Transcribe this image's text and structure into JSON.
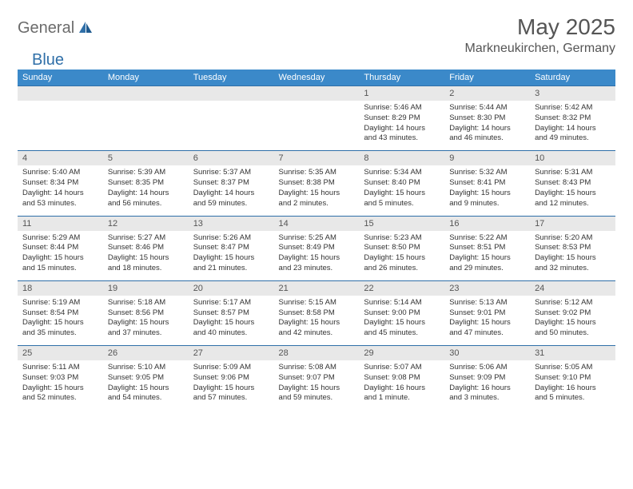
{
  "logo": {
    "part1": "General",
    "part2": "Blue"
  },
  "title": "May 2025",
  "location": "Markneukirchen, Germany",
  "colors": {
    "header_bg": "#3b89c9",
    "border": "#2f6fa8",
    "daynum_bg": "#e8e8e8",
    "text": "#333333",
    "logo_gray": "#6b6b6b",
    "logo_blue": "#2f6fa8"
  },
  "dow": [
    "Sunday",
    "Monday",
    "Tuesday",
    "Wednesday",
    "Thursday",
    "Friday",
    "Saturday"
  ],
  "weeks": [
    [
      null,
      null,
      null,
      null,
      {
        "n": "1",
        "sr": "5:46 AM",
        "ss": "8:29 PM",
        "dl": "14 hours and 43 minutes."
      },
      {
        "n": "2",
        "sr": "5:44 AM",
        "ss": "8:30 PM",
        "dl": "14 hours and 46 minutes."
      },
      {
        "n": "3",
        "sr": "5:42 AM",
        "ss": "8:32 PM",
        "dl": "14 hours and 49 minutes."
      }
    ],
    [
      {
        "n": "4",
        "sr": "5:40 AM",
        "ss": "8:34 PM",
        "dl": "14 hours and 53 minutes."
      },
      {
        "n": "5",
        "sr": "5:39 AM",
        "ss": "8:35 PM",
        "dl": "14 hours and 56 minutes."
      },
      {
        "n": "6",
        "sr": "5:37 AM",
        "ss": "8:37 PM",
        "dl": "14 hours and 59 minutes."
      },
      {
        "n": "7",
        "sr": "5:35 AM",
        "ss": "8:38 PM",
        "dl": "15 hours and 2 minutes."
      },
      {
        "n": "8",
        "sr": "5:34 AM",
        "ss": "8:40 PM",
        "dl": "15 hours and 5 minutes."
      },
      {
        "n": "9",
        "sr": "5:32 AM",
        "ss": "8:41 PM",
        "dl": "15 hours and 9 minutes."
      },
      {
        "n": "10",
        "sr": "5:31 AM",
        "ss": "8:43 PM",
        "dl": "15 hours and 12 minutes."
      }
    ],
    [
      {
        "n": "11",
        "sr": "5:29 AM",
        "ss": "8:44 PM",
        "dl": "15 hours and 15 minutes."
      },
      {
        "n": "12",
        "sr": "5:27 AM",
        "ss": "8:46 PM",
        "dl": "15 hours and 18 minutes."
      },
      {
        "n": "13",
        "sr": "5:26 AM",
        "ss": "8:47 PM",
        "dl": "15 hours and 21 minutes."
      },
      {
        "n": "14",
        "sr": "5:25 AM",
        "ss": "8:49 PM",
        "dl": "15 hours and 23 minutes."
      },
      {
        "n": "15",
        "sr": "5:23 AM",
        "ss": "8:50 PM",
        "dl": "15 hours and 26 minutes."
      },
      {
        "n": "16",
        "sr": "5:22 AM",
        "ss": "8:51 PM",
        "dl": "15 hours and 29 minutes."
      },
      {
        "n": "17",
        "sr": "5:20 AM",
        "ss": "8:53 PM",
        "dl": "15 hours and 32 minutes."
      }
    ],
    [
      {
        "n": "18",
        "sr": "5:19 AM",
        "ss": "8:54 PM",
        "dl": "15 hours and 35 minutes."
      },
      {
        "n": "19",
        "sr": "5:18 AM",
        "ss": "8:56 PM",
        "dl": "15 hours and 37 minutes."
      },
      {
        "n": "20",
        "sr": "5:17 AM",
        "ss": "8:57 PM",
        "dl": "15 hours and 40 minutes."
      },
      {
        "n": "21",
        "sr": "5:15 AM",
        "ss": "8:58 PM",
        "dl": "15 hours and 42 minutes."
      },
      {
        "n": "22",
        "sr": "5:14 AM",
        "ss": "9:00 PM",
        "dl": "15 hours and 45 minutes."
      },
      {
        "n": "23",
        "sr": "5:13 AM",
        "ss": "9:01 PM",
        "dl": "15 hours and 47 minutes."
      },
      {
        "n": "24",
        "sr": "5:12 AM",
        "ss": "9:02 PM",
        "dl": "15 hours and 50 minutes."
      }
    ],
    [
      {
        "n": "25",
        "sr": "5:11 AM",
        "ss": "9:03 PM",
        "dl": "15 hours and 52 minutes."
      },
      {
        "n": "26",
        "sr": "5:10 AM",
        "ss": "9:05 PM",
        "dl": "15 hours and 54 minutes."
      },
      {
        "n": "27",
        "sr": "5:09 AM",
        "ss": "9:06 PM",
        "dl": "15 hours and 57 minutes."
      },
      {
        "n": "28",
        "sr": "5:08 AM",
        "ss": "9:07 PM",
        "dl": "15 hours and 59 minutes."
      },
      {
        "n": "29",
        "sr": "5:07 AM",
        "ss": "9:08 PM",
        "dl": "16 hours and 1 minute."
      },
      {
        "n": "30",
        "sr": "5:06 AM",
        "ss": "9:09 PM",
        "dl": "16 hours and 3 minutes."
      },
      {
        "n": "31",
        "sr": "5:05 AM",
        "ss": "9:10 PM",
        "dl": "16 hours and 5 minutes."
      }
    ]
  ],
  "labels": {
    "sunrise": "Sunrise:",
    "sunset": "Sunset:",
    "daylight": "Daylight:"
  }
}
